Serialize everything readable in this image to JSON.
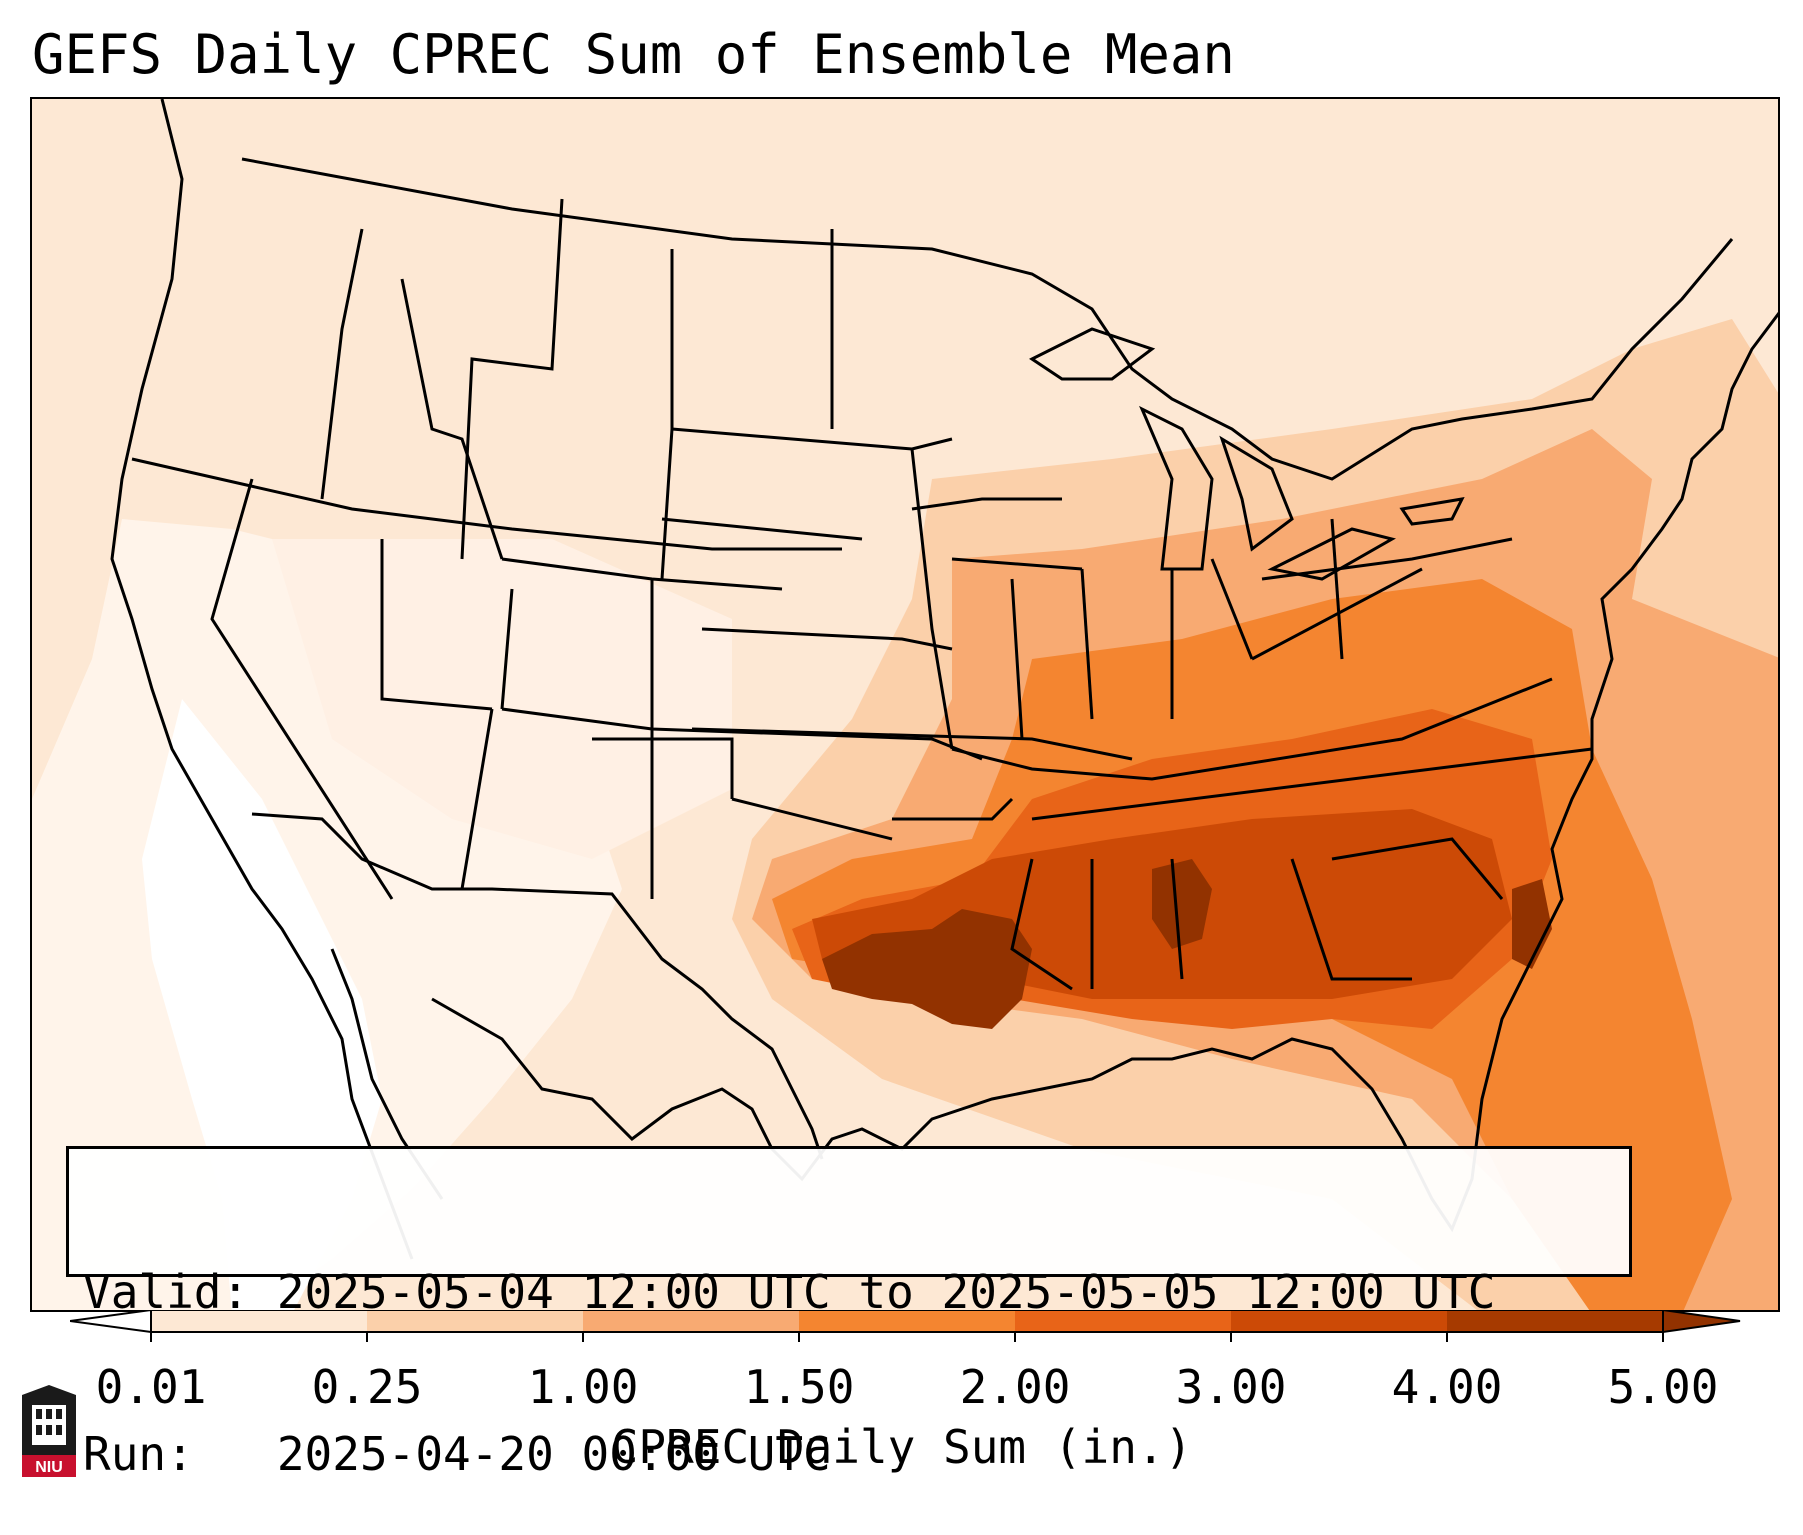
{
  "title": "GEFS Daily CPREC Sum of Ensemble Mean",
  "info": {
    "valid": "Valid: 2025-05-04 12:00 UTC to 2025-05-05 12:00 UTC",
    "run": "Run:   2025-04-20 00:00 UTC"
  },
  "colorbar": {
    "label": "CPREC Daily Sum (in.)",
    "ticks": [
      "0.01",
      "0.25",
      "1.00",
      "1.50",
      "2.00",
      "3.00",
      "4.00",
      "5.00"
    ],
    "colors": [
      "#ffffff",
      "#fde8d4",
      "#fbd0aa",
      "#f8aa72",
      "#f48530",
      "#e86418",
      "#cc4a06",
      "#923200"
    ],
    "extend": "both"
  },
  "logo": {
    "text": "NIU",
    "color": "#c8102e"
  },
  "map": {
    "region": "Contiguous United States, southern Canada, northern Mexico, Gulf of Mexico",
    "heaviest_area": "Southern Plains through Lower Mississippi Valley and Southeast"
  }
}
